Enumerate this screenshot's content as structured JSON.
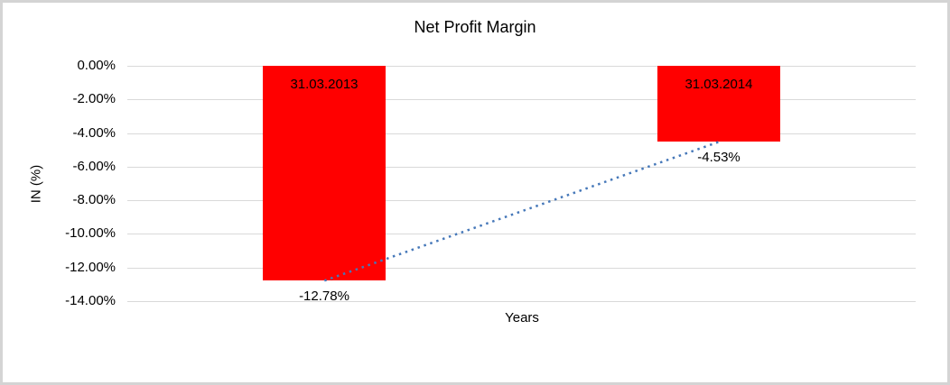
{
  "window": {
    "background_color": "#ffffff",
    "frame_border_color": "#d4d4d4"
  },
  "chart_data": {
    "type": "bar",
    "title": "Net Profit Margin",
    "xlabel": "Years",
    "ylabel": "IN (%)",
    "categories": [
      "31.03.2013",
      "31.03.2014"
    ],
    "values": [
      -12.78,
      -4.53
    ],
    "value_labels": [
      "-12.78%",
      "-4.53%"
    ],
    "category_label_position": "inside-top",
    "value_label_position": "below-bar",
    "ylim": [
      -14,
      0
    ],
    "yticks": [
      0,
      -2,
      -4,
      -6,
      -8,
      -10,
      -12,
      -14
    ],
    "ytick_labels": [
      "0.00%",
      "-2.00%",
      "-4.00%",
      "-6.00%",
      "-8.00%",
      "-10.00%",
      "-12.00%",
      "-14.00%"
    ],
    "grid": true,
    "legend": "none",
    "bar_color": "#ff0000",
    "gridline_color": "#d9d9d9",
    "text_color": "#000000",
    "trendline": {
      "type": "linear",
      "style": "dotted",
      "color": "#4678b9",
      "points": [
        -12.78,
        -4.53
      ]
    }
  }
}
